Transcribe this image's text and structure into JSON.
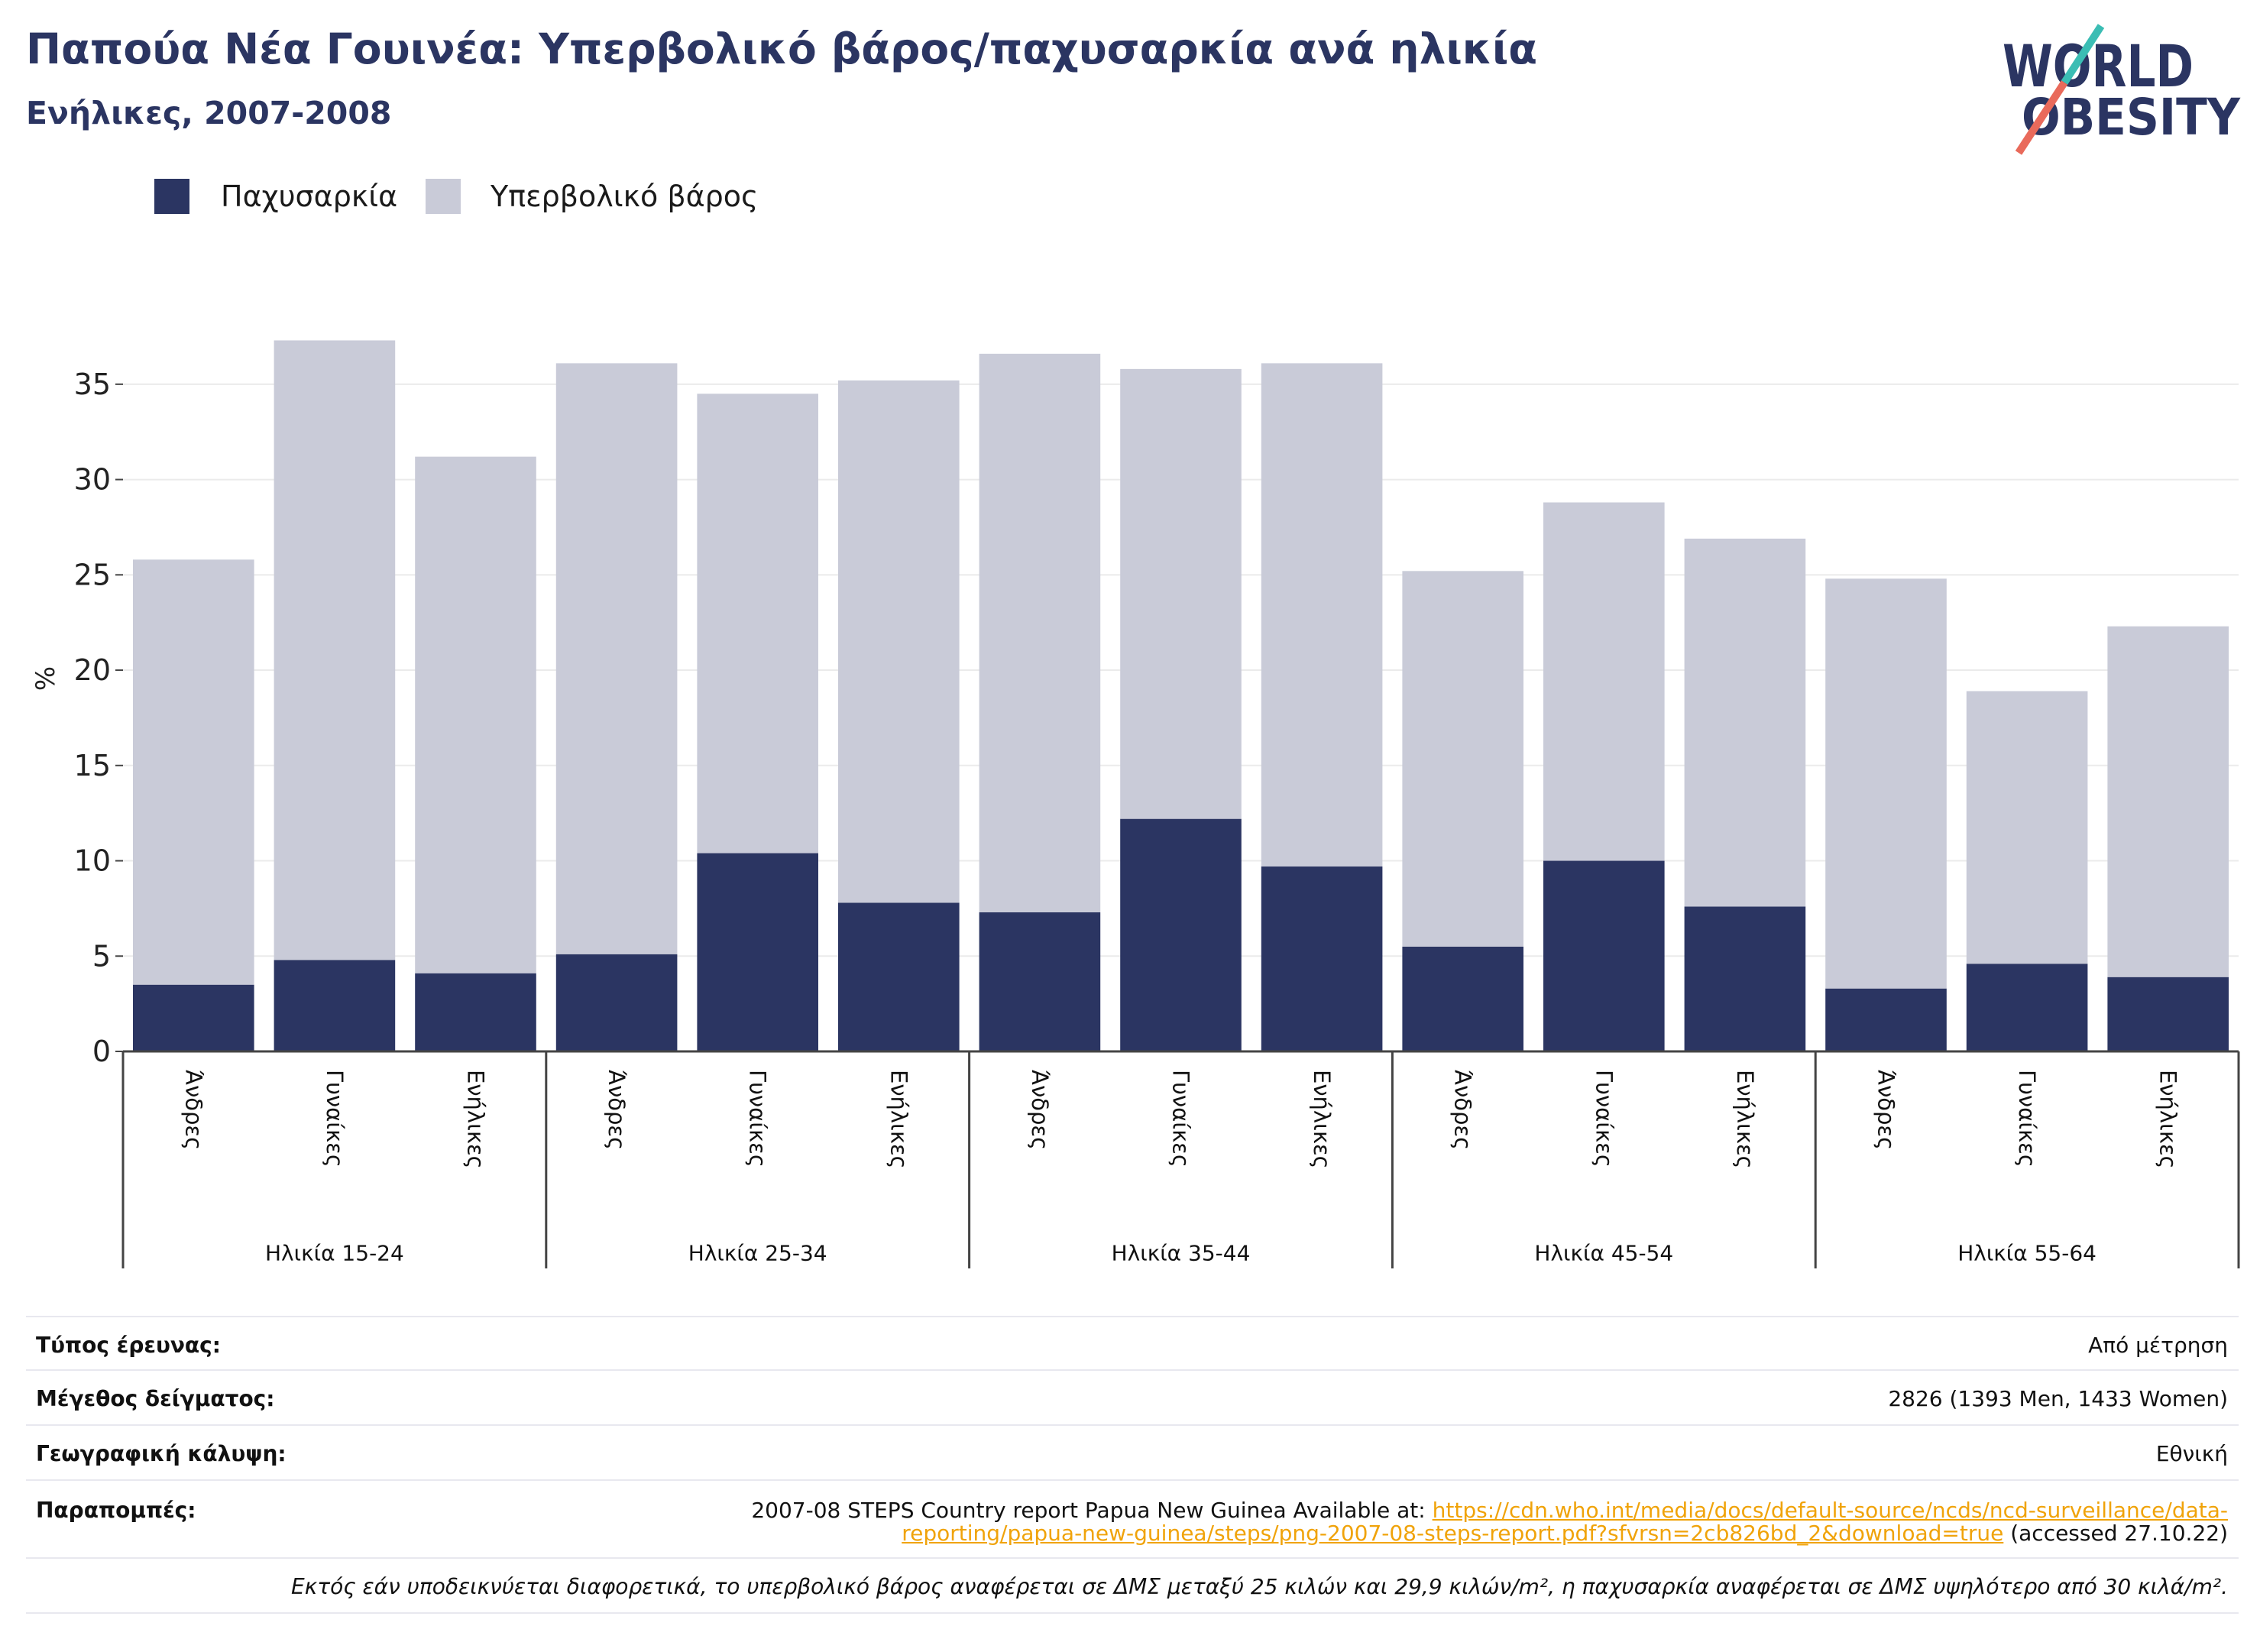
{
  "chart_data": {
    "type": "bar",
    "stacked": true,
    "title": "Παπούα Νέα Γουινέα: Υπερβολικό βάρος/παχυσαρκία ανά ηλικία",
    "subtitle": "Ενήλικες, 2007-2008",
    "ylabel": "%",
    "ylim": [
      0,
      38
    ],
    "yticks": [
      0,
      5,
      10,
      15,
      20,
      25,
      30,
      35
    ],
    "grid": true,
    "legend_position": "top-left",
    "groups": [
      {
        "label": "Ηλικία 15-24",
        "categories": [
          "Άνδρες",
          "Γυναίκες",
          "Ενήλικες"
        ]
      },
      {
        "label": "Ηλικία 25-34",
        "categories": [
          "Άνδρες",
          "Γυναίκες",
          "Ενήλικες"
        ]
      },
      {
        "label": "Ηλικία 35-44",
        "categories": [
          "Άνδρες",
          "Γυναίκες",
          "Ενήλικες"
        ]
      },
      {
        "label": "Ηλικία 45-54",
        "categories": [
          "Άνδρες",
          "Γυναίκες",
          "Ενήλικες"
        ]
      },
      {
        "label": "Ηλικία 55-64",
        "categories": [
          "Άνδρες",
          "Γυναίκες",
          "Ενήλικες"
        ]
      }
    ],
    "series": [
      {
        "name": "Παχυσαρκία",
        "color": "#2b3562",
        "values": [
          3.5,
          4.8,
          4.1,
          5.1,
          10.4,
          7.8,
          7.3,
          12.2,
          9.7,
          5.5,
          10.0,
          7.6,
          3.3,
          4.6,
          3.9
        ]
      },
      {
        "name": "Υπερβολικό βάρος",
        "color": "#c9cbd8",
        "values": [
          22.3,
          32.5,
          27.1,
          31.0,
          24.1,
          27.4,
          29.3,
          23.6,
          26.4,
          19.7,
          18.8,
          19.3,
          21.5,
          14.3,
          18.4
        ]
      }
    ]
  },
  "logo": {
    "line1": "WORLD",
    "line2": "OBESITY",
    "colors": {
      "text": "#2b3562",
      "accent_top": "#3bbdb4",
      "accent_bottom": "#e96a5b"
    }
  },
  "info": {
    "survey_type": {
      "label": "Τύπος έρευνας:",
      "value": "Από μέτρηση"
    },
    "sample_size": {
      "label": "Μέγεθος δείγματος:",
      "value": "2826 (1393 Men, 1433 Women)"
    },
    "coverage": {
      "label": "Γεωγραφική κάλυψη:",
      "value": "Εθνική"
    },
    "references": {
      "label": "Παραπομπές:",
      "text_line1": "2007-08 STEPS Country report Papua New Guinea Available at: ",
      "link_line1": "https://cdn.who.int/media/docs/default-source/ncds/ncd-surveillance/data-",
      "link_line2": "reporting/papua-new-guinea/steps/png-2007-08-steps-report.pdf?sfvrsn=2cb826bd_2&download=true",
      "text_line2": " (accessed 27.10.22)"
    },
    "note": "Εκτός εάν υποδεικνύεται διαφορετικά, το υπερβολικό βάρος αναφέρεται σε ΔΜΣ μεταξύ 25 κιλών και 29,9 κιλών/m², η παχυσαρκία αναφέρεται σε ΔΜΣ υψηλότερο από 30 κιλά/m²."
  },
  "colors": {
    "title": "#2b3562",
    "link": "#f0a30a",
    "gridline": "#ebebeb",
    "axis": "#444444",
    "divider": "#e8e8ef"
  }
}
